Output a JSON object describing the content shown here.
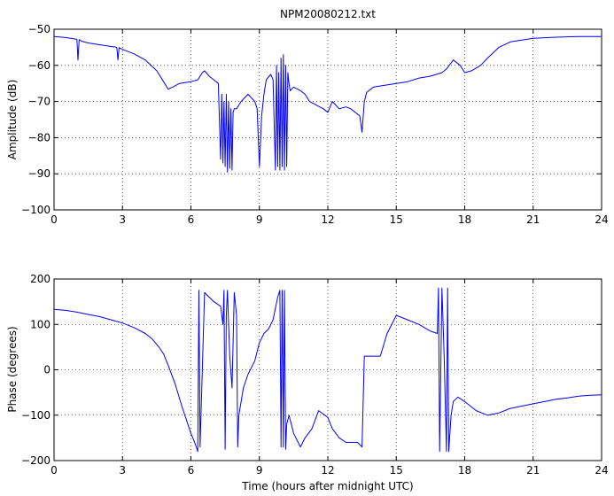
{
  "chart_data": [
    {
      "type": "line",
      "title": "NPM20080212.txt",
      "xlabel": "",
      "ylabel": "Amplitude (dB)",
      "xlim": [
        0,
        24
      ],
      "ylim": [
        -100,
        -50
      ],
      "xticks": [
        "0",
        "3",
        "6",
        "9",
        "12",
        "15",
        "18",
        "21",
        "24"
      ],
      "yticks": [
        "-100",
        "-90",
        "-80",
        "-70",
        "-60",
        "-50"
      ],
      "grid": true,
      "line_color": "#0000ff",
      "series": [
        {
          "x": [
            0,
            0.5,
            1.0,
            1.05,
            1.1,
            1.15,
            1.2,
            1.5,
            2.0,
            2.75,
            2.8,
            2.85,
            2.9,
            3.0,
            3.5,
            4.0,
            4.5,
            4.8,
            5.0,
            5.2,
            5.5,
            6.0,
            6.3,
            6.5,
            6.6,
            6.8,
            7.0,
            7.2,
            7.3,
            7.35,
            7.4,
            7.45,
            7.5,
            7.55,
            7.6,
            7.65,
            7.7,
            7.75,
            7.8,
            7.85,
            7.9,
            8.0,
            8.2,
            8.5,
            8.8,
            8.9,
            9.0,
            9.1,
            9.2,
            9.3,
            9.5,
            9.6,
            9.7,
            9.75,
            9.8,
            9.85,
            9.9,
            9.95,
            10.0,
            10.05,
            10.1,
            10.15,
            10.2,
            10.25,
            10.3,
            10.35,
            10.5,
            10.8,
            11.0,
            11.2,
            11.5,
            11.8,
            12.0,
            12.2,
            12.5,
            12.8,
            13.0,
            13.2,
            13.4,
            13.5,
            13.6,
            13.7,
            14.0,
            14.5,
            15.0,
            15.5,
            16.0,
            16.5,
            17.0,
            17.2,
            17.5,
            17.8,
            18.0,
            18.3,
            18.7,
            19.0,
            19.5,
            20.0,
            21.0,
            22.0,
            23.0,
            24.0
          ],
          "y": [
            -52.0,
            -52.3,
            -52.8,
            -58.5,
            -52.9,
            -53.0,
            -53.3,
            -53.8,
            -54.3,
            -55.0,
            -58.5,
            -55.1,
            -55.3,
            -55.6,
            -56.8,
            -58.5,
            -61.5,
            -64.5,
            -66.6,
            -66.0,
            -65.0,
            -64.5,
            -64.0,
            -62.0,
            -61.5,
            -63.0,
            -64.0,
            -65.0,
            -86.0,
            -68.0,
            -87.0,
            -70.0,
            -88.0,
            -68.0,
            -89.5,
            -70.0,
            -88.5,
            -72.0,
            -89.0,
            -73.0,
            -72.0,
            -72.0,
            -70.0,
            -68.0,
            -70.0,
            -72.0,
            -88.0,
            -74.0,
            -68.0,
            -64.0,
            -62.5,
            -64.0,
            -89.0,
            -60.0,
            -88.0,
            -62.0,
            -89.0,
            -58.0,
            -88.0,
            -57.0,
            -89.0,
            -60.0,
            -88.0,
            -62.0,
            -65.0,
            -67.0,
            -66.0,
            -67.0,
            -68.0,
            -70.0,
            -71.0,
            -72.0,
            -73.0,
            -70.0,
            -72.0,
            -71.5,
            -72.0,
            -73.0,
            -74.0,
            -78.5,
            -70.0,
            -67.5,
            -66.0,
            -65.5,
            -65.0,
            -64.5,
            -63.5,
            -63.0,
            -62.0,
            -61.0,
            -58.5,
            -60.0,
            -62.0,
            -61.5,
            -60.0,
            -58.0,
            -55.0,
            -53.5,
            -52.5,
            -52.2,
            -52.0,
            -52.0
          ]
        }
      ]
    },
    {
      "type": "line",
      "title": "",
      "xlabel": "Time (hours after midnight UTC)",
      "ylabel": "Phase (degrees)",
      "xlim": [
        0,
        24
      ],
      "ylim": [
        -200,
        200
      ],
      "xticks": [
        "0",
        "3",
        "6",
        "9",
        "12",
        "15",
        "18",
        "21",
        "24"
      ],
      "yticks": [
        "-200",
        "-100",
        "0",
        "100",
        "200"
      ],
      "grid": true,
      "line_color": "#0000ff",
      "series": [
        {
          "x": [
            0,
            0.5,
            1.0,
            1.5,
            2.0,
            2.5,
            3.0,
            3.5,
            4.0,
            4.3,
            4.6,
            4.8,
            5.0,
            5.3,
            5.6,
            6.0,
            6.2,
            6.3,
            6.35,
            6.4,
            6.6,
            7.0,
            7.3,
            7.4,
            7.45,
            7.5,
            7.55,
            7.6,
            7.7,
            7.8,
            7.9,
            8.0,
            8.05,
            8.1,
            8.3,
            8.5,
            8.8,
            9.0,
            9.2,
            9.4,
            9.6,
            9.8,
            9.9,
            9.95,
            10.0,
            10.05,
            10.1,
            10.15,
            10.2,
            10.3,
            10.5,
            10.8,
            11.0,
            11.3,
            11.6,
            12.0,
            12.2,
            12.5,
            12.8,
            13.0,
            13.3,
            13.5,
            13.6,
            13.7,
            14.0,
            14.3,
            14.6,
            15.0,
            15.5,
            16.0,
            16.5,
            16.8,
            16.85,
            16.9,
            17.0,
            17.1,
            17.2,
            17.25,
            17.3,
            17.4,
            17.5,
            17.7,
            18.0,
            18.5,
            19.0,
            19.5,
            20.0,
            20.5,
            21.0,
            21.5,
            22.0,
            22.5,
            23.0,
            23.5,
            24.0
          ],
          "y": [
            133,
            131,
            127,
            122,
            117,
            110,
            103,
            93,
            80,
            68,
            50,
            35,
            10,
            -30,
            -80,
            -140,
            -165,
            -180,
            175,
            -170,
            170,
            150,
            140,
            100,
            175,
            -175,
            120,
            175,
            30,
            -40,
            170,
            120,
            -170,
            -100,
            -40,
            -10,
            20,
            60,
            80,
            90,
            110,
            160,
            175,
            -170,
            175,
            -170,
            175,
            -175,
            -120,
            -100,
            -140,
            -170,
            -150,
            -130,
            -90,
            -105,
            -130,
            -150,
            -160,
            -160,
            -160,
            -170,
            30,
            30,
            30,
            30,
            80,
            120,
            110,
            100,
            85,
            80,
            180,
            -180,
            180,
            30,
            -180,
            180,
            -180,
            -100,
            -70,
            -60,
            -70,
            -90,
            -100,
            -95,
            -85,
            -80,
            -75,
            -70,
            -65,
            -62,
            -58,
            -56,
            -55
          ]
        }
      ]
    }
  ]
}
